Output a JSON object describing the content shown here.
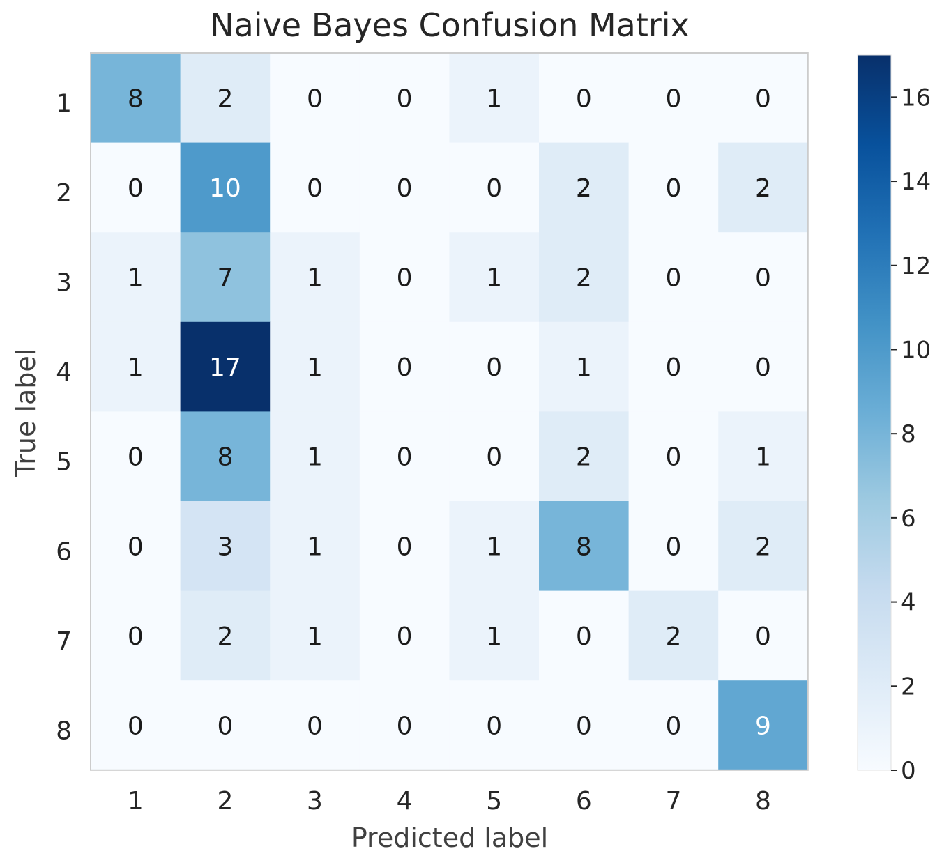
{
  "chart_data": {
    "type": "heatmap",
    "title": "Naive Bayes Confusion Matrix",
    "xlabel": "Predicted label",
    "ylabel": "True label",
    "x_categories": [
      "1",
      "2",
      "3",
      "4",
      "5",
      "6",
      "7",
      "8"
    ],
    "y_categories": [
      "1",
      "2",
      "3",
      "4",
      "5",
      "6",
      "7",
      "8"
    ],
    "values": [
      [
        8,
        2,
        0,
        0,
        1,
        0,
        0,
        0
      ],
      [
        0,
        10,
        0,
        0,
        0,
        2,
        0,
        2
      ],
      [
        1,
        7,
        1,
        0,
        1,
        2,
        0,
        0
      ],
      [
        1,
        17,
        1,
        0,
        0,
        1,
        0,
        0
      ],
      [
        0,
        8,
        1,
        0,
        0,
        2,
        0,
        1
      ],
      [
        0,
        3,
        1,
        0,
        1,
        8,
        0,
        2
      ],
      [
        0,
        2,
        1,
        0,
        1,
        0,
        2,
        0
      ],
      [
        0,
        0,
        0,
        0,
        0,
        0,
        0,
        9
      ]
    ],
    "colorscale": "Blues",
    "colors": {
      "low": "#f7fbff",
      "high": "#08306b",
      "text_dark": "#1a1a1a",
      "text_light": "#ffffff",
      "frame": "#cccccc"
    },
    "colorbar": {
      "range": [
        0,
        17
      ],
      "ticks": [
        {
          "value": 0,
          "label": "0"
        },
        {
          "value": 2,
          "label": "2"
        },
        {
          "value": 4,
          "label": "4"
        },
        {
          "value": 6,
          "label": "6"
        },
        {
          "value": 8,
          "label": "8"
        },
        {
          "value": 10,
          "label": "10"
        },
        {
          "value": 12,
          "label": "12"
        },
        {
          "value": 14,
          "label": "14"
        },
        {
          "value": 16,
          "label": "16"
        }
      ]
    },
    "grid": false
  }
}
